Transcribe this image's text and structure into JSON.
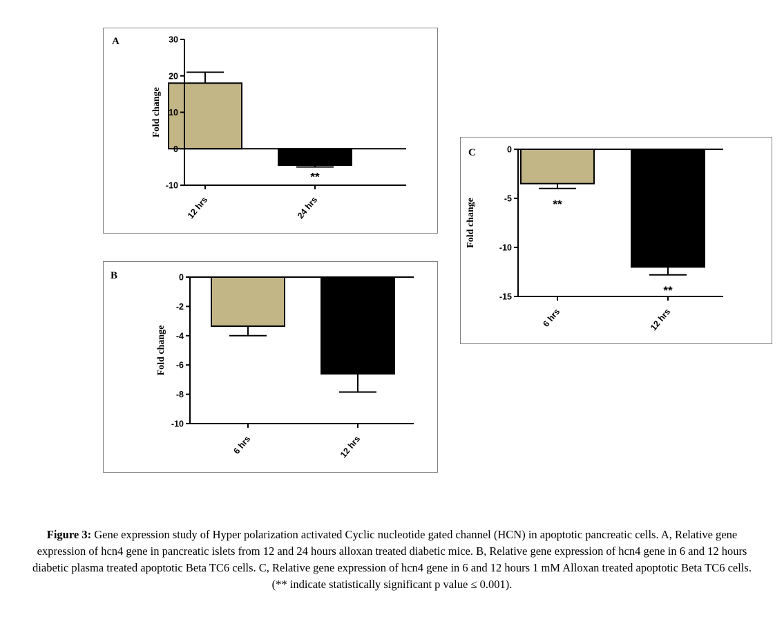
{
  "chart_data": [
    {
      "type": "bar",
      "panel_label": "A",
      "ylabel": "Fold change",
      "ylim": [
        -10,
        30
      ],
      "yticks": [
        -10,
        0,
        10,
        20,
        30
      ],
      "ytick_labels": [
        "-10",
        "0",
        "10",
        "20",
        "30"
      ],
      "categories": [
        "12 hrs",
        "24 hrs"
      ],
      "values": [
        18,
        -4.5
      ],
      "errors": [
        3,
        0.5
      ],
      "bar_colors": [
        "#c2b586",
        "#000000"
      ],
      "significance": [
        "",
        "**"
      ]
    },
    {
      "type": "bar",
      "panel_label": "B",
      "ylabel": "Fold change",
      "ylim": [
        -10,
        0
      ],
      "yticks": [
        -10,
        -8,
        -6,
        -4,
        -2,
        0
      ],
      "ytick_labels": [
        "-10",
        "-8",
        "-6",
        "-4",
        "-2",
        "0"
      ],
      "categories": [
        "6 hrs",
        "12 hrs"
      ],
      "values": [
        -3.35,
        -6.6
      ],
      "errors": [
        0.65,
        1.25
      ],
      "bar_colors": [
        "#c2b586",
        "#000000"
      ],
      "significance": [
        "",
        ""
      ]
    },
    {
      "type": "bar",
      "panel_label": "C",
      "ylabel": "Fold change",
      "ylim": [
        -15,
        0
      ],
      "yticks": [
        -15,
        -10,
        -5,
        0
      ],
      "ytick_labels": [
        "-15",
        "-10",
        "-5",
        "0"
      ],
      "categories": [
        "6 hrs",
        "12 hrs"
      ],
      "values": [
        -3.5,
        -12
      ],
      "errors": [
        0.5,
        0.8
      ],
      "bar_colors": [
        "#c2b586",
        "#000000"
      ],
      "significance": [
        "**",
        "**"
      ]
    }
  ],
  "caption": {
    "label": "Figure 3:",
    "text": " Gene expression study of Hyper polarization activated Cyclic nucleotide gated channel (HCN) in apoptotic pancreatic cells.  A, Relative gene expression of hcn4 gene in pancreatic islets from 12 and 24 hours alloxan treated diabetic mice.  B, Relative gene expression of hcn4 gene in 6 and 12 hours diabetic plasma treated apoptotic Beta TC6 cells.  C, Relative gene expression of hcn4 gene in 6 and 12 hours 1 mM Alloxan treated apoptotic Beta TC6 cells. (** indicate statistically significant p value ≤ 0.001)."
  }
}
